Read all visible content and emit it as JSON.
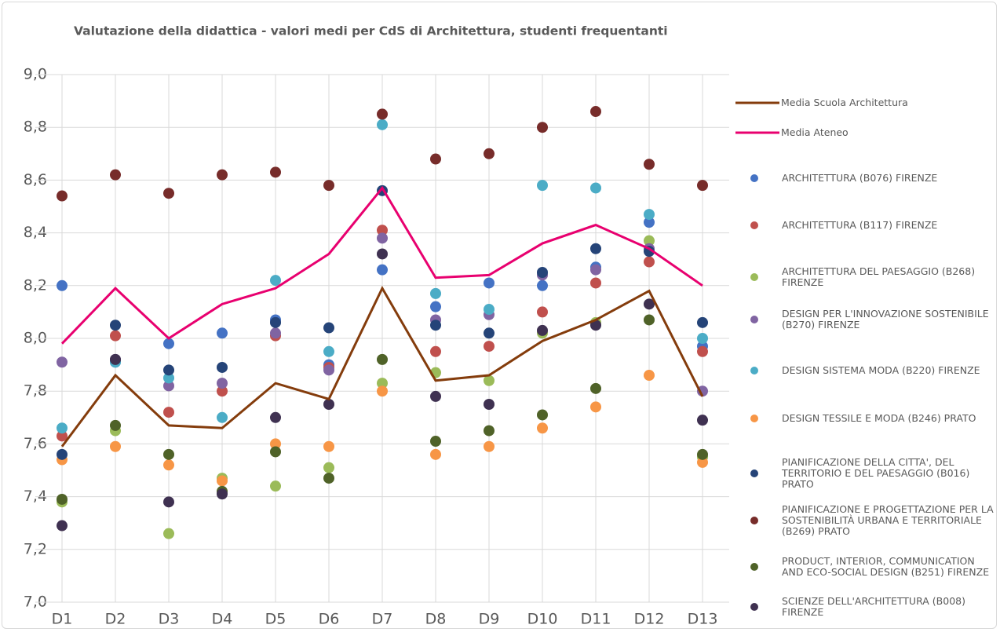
{
  "chart_data": {
    "type": "line",
    "title": "Valutazione della didattica - valori medi per CdS di Architettura, studenti frequentanti",
    "categories": [
      "D1",
      "D2",
      "D3",
      "D4",
      "D5",
      "D6",
      "D7",
      "D8",
      "D9",
      "D10",
      "D11",
      "D12",
      "D13"
    ],
    "ylim": [
      7,
      9
    ],
    "yticks": [
      {
        "value": 7,
        "label": "7,0"
      },
      {
        "value": 7.2,
        "label": "7,2"
      },
      {
        "value": 7.4,
        "label": "7,4"
      },
      {
        "value": 7.6,
        "label": "7,6"
      },
      {
        "value": 7.8,
        "label": "7,8"
      },
      {
        "value": 8,
        "label": "8,0"
      },
      {
        "value": 8.2,
        "label": "8,2"
      },
      {
        "value": 8.4,
        "label": "8,4"
      },
      {
        "value": 8.6,
        "label": "8,6"
      },
      {
        "value": 8.8,
        "label": "8,8"
      },
      {
        "value": 9,
        "label": "9,0"
      }
    ],
    "grid": true,
    "legend": "right",
    "series": [
      {
        "name": "Media Scuola Architettura",
        "type": "line",
        "color": "#843c0c",
        "values": [
          7.59,
          7.86,
          7.67,
          7.66,
          7.83,
          7.77,
          8.19,
          7.84,
          7.86,
          7.99,
          8.07,
          8.18,
          7.78
        ]
      },
      {
        "name": "Media Ateneo",
        "type": "line",
        "color": "#e8006f",
        "values": [
          7.98,
          8.19,
          8.0,
          8.13,
          8.19,
          8.32,
          8.57,
          8.23,
          8.24,
          8.36,
          8.43,
          8.34,
          8.2
        ]
      },
      {
        "name": "ARCHITETTURA (B076) FIRENZE",
        "type": "scatter",
        "color": "#4472c4",
        "values": [
          8.2,
          7.91,
          7.98,
          8.02,
          8.07,
          7.9,
          8.26,
          8.12,
          8.21,
          8.2,
          8.27,
          8.44,
          7.97
        ]
      },
      {
        "name": "ARCHITETTURA (B117) FIRENZE",
        "type": "scatter",
        "color": "#c0504d",
        "values": [
          7.63,
          8.01,
          7.72,
          7.8,
          8.01,
          7.89,
          8.41,
          7.95,
          7.97,
          8.1,
          8.21,
          8.29,
          7.95
        ]
      },
      {
        "name": "ARCHITETTURA DEL PAESAGGIO (B268) FIRENZE",
        "type": "scatter",
        "color": "#9bbb59",
        "values": [
          7.38,
          7.65,
          7.26,
          7.47,
          7.44,
          7.51,
          7.83,
          7.87,
          7.84,
          8.02,
          8.06,
          8.37,
          7.55
        ]
      },
      {
        "name": "DESIGN PER L'INNOVAZIONE SOSTENIBILE (B270) FIRENZE",
        "type": "scatter",
        "color": "#8064a2",
        "values": [
          7.91,
          7.92,
          7.82,
          7.83,
          8.02,
          7.88,
          8.38,
          8.07,
          8.09,
          8.24,
          8.26,
          8.34,
          7.8
        ]
      },
      {
        "name": "DESIGN SISTEMA MODA (B220) FIRENZE",
        "type": "scatter",
        "color": "#4bacc6",
        "values": [
          7.66,
          7.91,
          7.85,
          7.7,
          8.22,
          7.95,
          8.81,
          8.17,
          8.11,
          8.58,
          8.57,
          8.47,
          8.0
        ]
      },
      {
        "name": "DESIGN TESSILE E MODA (B246) PRATO",
        "type": "scatter",
        "color": "#f79646",
        "values": [
          7.54,
          7.59,
          7.52,
          7.46,
          7.6,
          7.59,
          7.8,
          7.56,
          7.59,
          7.66,
          7.74,
          7.86,
          7.53
        ]
      },
      {
        "name": "PIANIFICAZIONE DELLA CITTA', DEL TERRITORIO E DEL PAESAGGIO (B016) PRATO",
        "type": "scatter",
        "color": "#254478",
        "values": [
          7.56,
          8.05,
          7.88,
          7.89,
          8.06,
          8.04,
          8.56,
          8.05,
          8.02,
          8.25,
          8.34,
          8.33,
          8.06
        ]
      },
      {
        "name": "PIANIFICAZIONE E PROGETTAZIONE PER LA SOSTENIBILITÀ URBANA E TERRITORIALE (B269) PRATO",
        "type": "scatter",
        "color": "#772c2a",
        "values": [
          8.54,
          8.62,
          8.55,
          8.62,
          8.63,
          8.58,
          8.85,
          8.68,
          8.7,
          8.8,
          8.86,
          8.66,
          8.58
        ]
      },
      {
        "name": "PRODUCT, INTERIOR, COMMUNICATION AND ECO-SOCIAL DESIGN (B251) FIRENZE",
        "type": "scatter",
        "color": "#4f6228",
        "values": [
          7.39,
          7.67,
          7.56,
          7.42,
          7.57,
          7.47,
          7.92,
          7.61,
          7.65,
          7.71,
          7.81,
          8.07,
          7.56
        ]
      },
      {
        "name": "SCIENZE DELL'ARCHITETTURA (B008) FIRENZE",
        "type": "scatter",
        "color": "#3f3151",
        "values": [
          7.29,
          7.92,
          7.38,
          7.41,
          7.7,
          7.75,
          8.32,
          7.78,
          7.75,
          8.03,
          8.05,
          8.13,
          7.69
        ]
      }
    ]
  }
}
